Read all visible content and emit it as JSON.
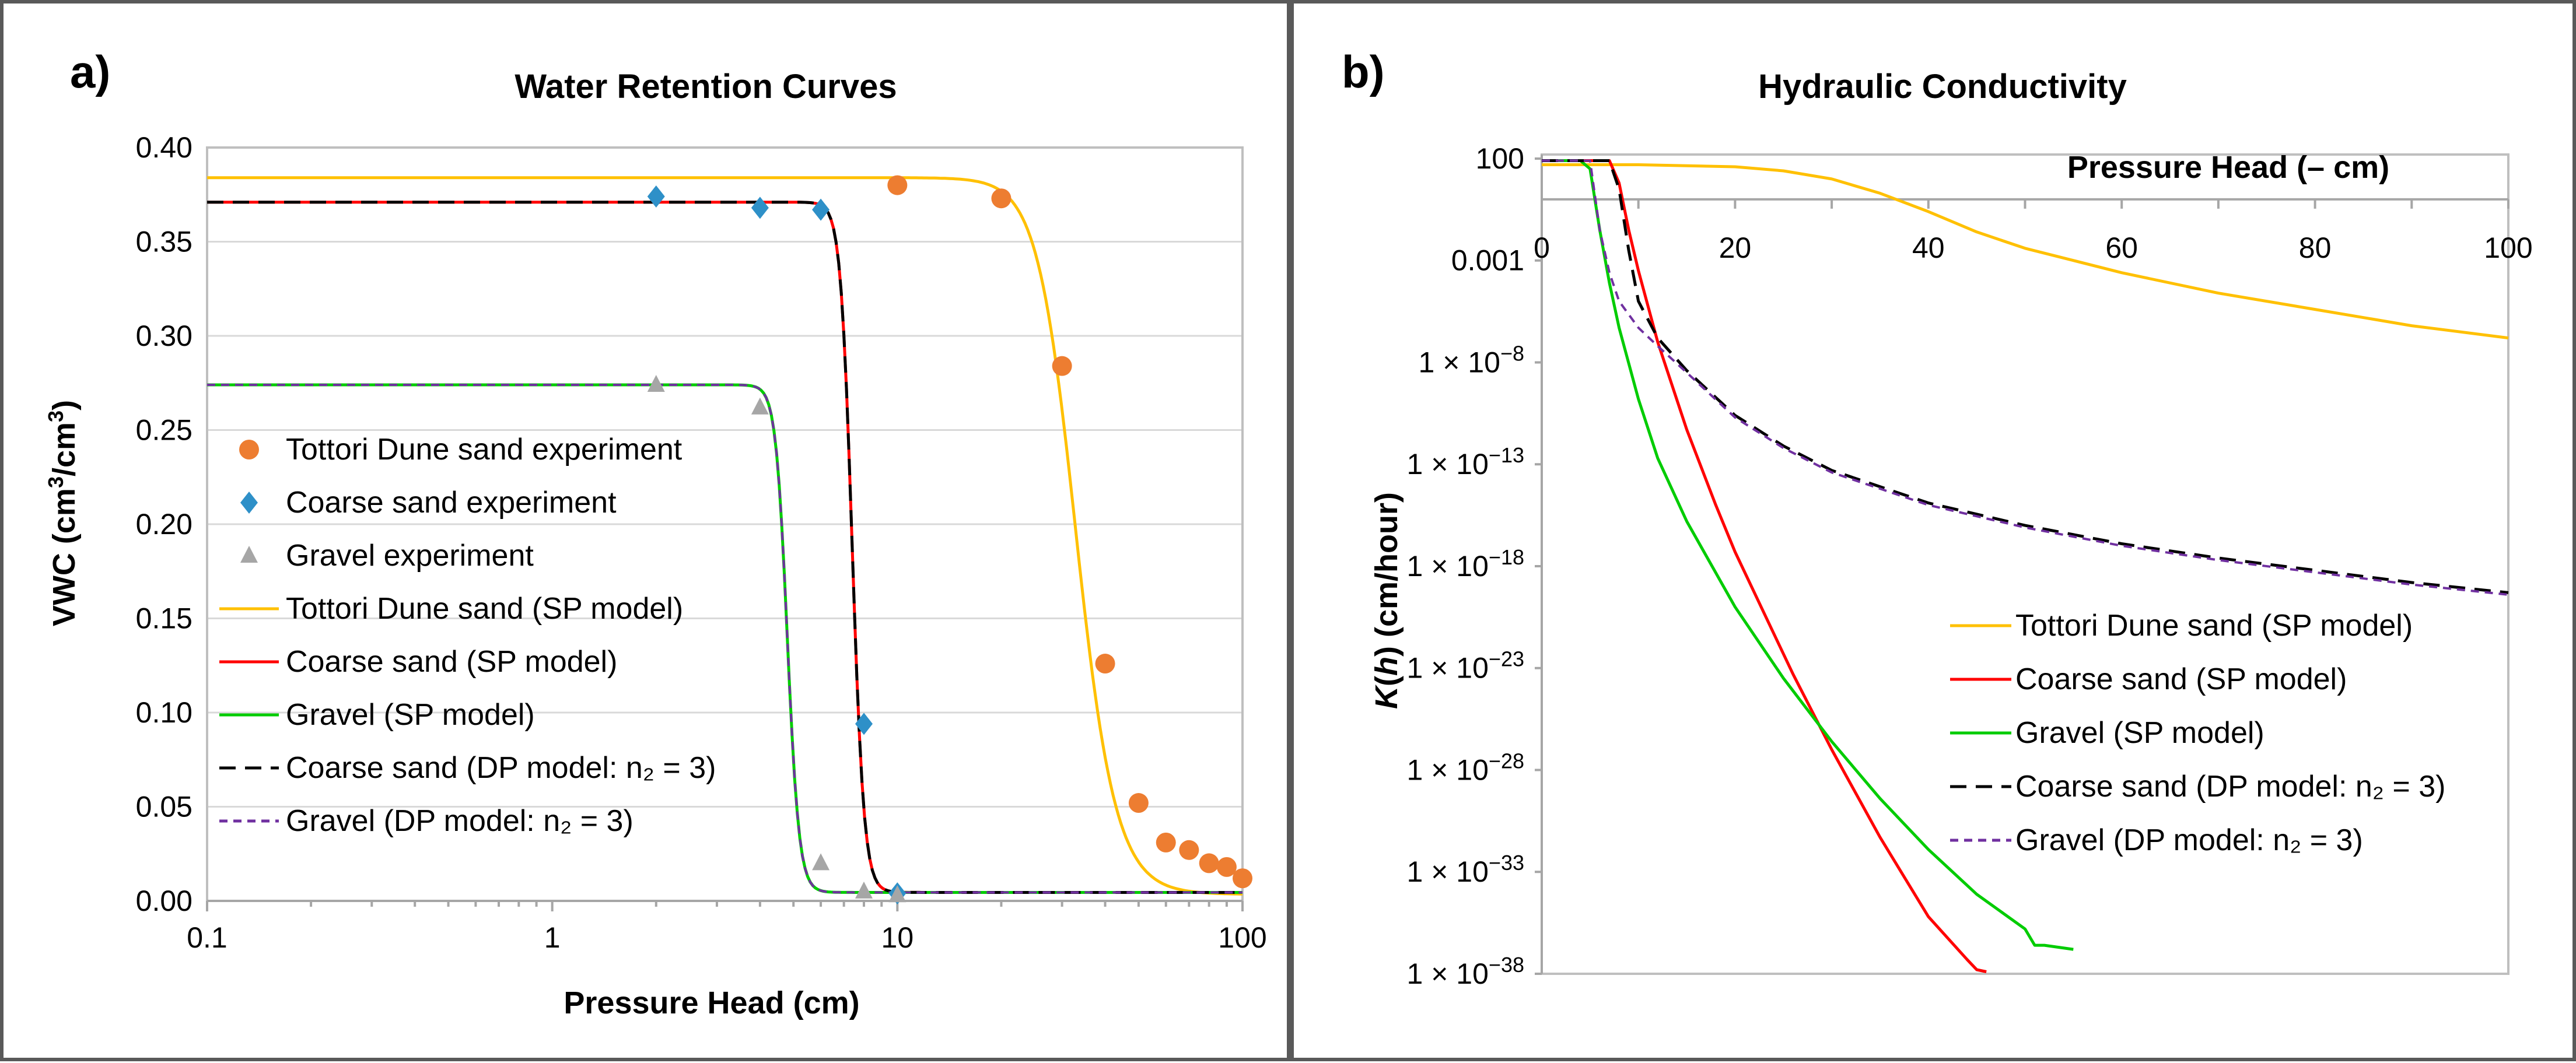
{
  "colors": {
    "tottori": "#ffc000",
    "tottori_marker": "#ed7d31",
    "coarse": "#ff0000",
    "coarse_marker": "#2e90c8",
    "gravel": "#00cc00",
    "gravel_marker": "#a6a6a6",
    "dp_coarse": "#000000",
    "dp_gravel": "#7030a0"
  },
  "chart_data": [
    {
      "type": "scatter",
      "panel_letter": "a)",
      "title": "Water Retention Curves",
      "xlabel": "Pressure Head (cm)",
      "ylabel": "VWC (cm³/cm³)",
      "xscale": "log",
      "xlim": [
        0.1,
        100
      ],
      "ylim": [
        0,
        0.4
      ],
      "x_ticks": [
        "0.1",
        "1",
        "10",
        "100"
      ],
      "y_ticks": [
        "0.00",
        "0.05",
        "0.10",
        "0.15",
        "0.20",
        "0.25",
        "0.30",
        "0.35",
        "0.40"
      ],
      "grid": true,
      "legend_position": "left",
      "legend": [
        "Tottori Dune sand experiment",
        "Coarse sand experiment",
        "Gravel experiment",
        "Tottori Dune sand (SP model)",
        "Coarse sand (SP model)",
        "Gravel (SP model)",
        "Coarse sand (DP model: n₂ = 3)",
        "Gravel (DP model: n₂ = 3)"
      ],
      "experiments": [
        {
          "name": "Tottori Dune sand experiment",
          "marker": "circle",
          "x": [
            10,
            20,
            30,
            40,
            50,
            60,
            70,
            80,
            90,
            100
          ],
          "y": [
            0.38,
            0.373,
            0.284,
            0.126,
            0.052,
            0.031,
            0.027,
            0.02,
            0.018,
            0.012
          ]
        },
        {
          "name": "Coarse sand experiment",
          "marker": "diamond",
          "x": [
            2,
            4,
            6,
            8,
            10
          ],
          "y": [
            0.374,
            0.368,
            0.367,
            0.094,
            0.004
          ]
        },
        {
          "name": "Gravel experiment",
          "marker": "triangle",
          "x": [
            2,
            4,
            6,
            8,
            10
          ],
          "y": [
            0.274,
            0.262,
            0.02,
            0.005,
            0.003
          ]
        }
      ],
      "models": [
        {
          "name": "Tottori Dune sand (SP model)",
          "qs": 0.384,
          "qr": 0.0035,
          "hm": 33,
          "n": 8
        },
        {
          "name": "Coarse sand (SP model)",
          "qs": 0.371,
          "qr": 0.0045,
          "hm": 7.4,
          "n": 26
        },
        {
          "name": "Gravel (SP model)",
          "qs": 0.274,
          "qr": 0.0045,
          "hm": 4.8,
          "n": 26
        },
        {
          "name": "Coarse sand (DP model: n₂ = 3)",
          "qs": 0.371,
          "qr": 0.0045,
          "hm": 7.4,
          "n": 26
        },
        {
          "name": "Gravel (DP model: n₂ = 3)",
          "qs": 0.274,
          "qr": 0.0045,
          "hm": 4.8,
          "n": 26
        }
      ]
    },
    {
      "type": "line",
      "panel_letter": "b)",
      "title": "Hydraulic  Conductivity",
      "xlabel": "Pressure Head (– cm)",
      "ylabel": "K(h) (cm/hour)",
      "yscale": "log",
      "xlim": [
        0,
        100
      ],
      "ylim_log10": [
        -38,
        2.2
      ],
      "x_ticks": [
        "0",
        "20",
        "40",
        "60",
        "80",
        "100"
      ],
      "y_ticks": [
        {
          "log10": 2,
          "label": "100"
        },
        {
          "log10": -3,
          "label": "0.001"
        },
        {
          "log10": -8,
          "label": "1 × 10",
          "exp": "−8"
        },
        {
          "log10": -13,
          "label": "1 × 10",
          "exp": "−13"
        },
        {
          "log10": -18,
          "label": "1 × 10",
          "exp": "−18"
        },
        {
          "log10": -23,
          "label": "1 × 10",
          "exp": "−23"
        },
        {
          "log10": -28,
          "label": "1 × 10",
          "exp": "−28"
        },
        {
          "log10": -33,
          "label": "1 × 10",
          "exp": "−33"
        },
        {
          "log10": -38,
          "label": "1 × 10",
          "exp": "−38"
        }
      ],
      "grid": false,
      "legend_position": "right",
      "legend": [
        "Tottori Dune sand (SP model)",
        "Coarse sand (SP model)",
        "Gravel (SP model)",
        "Coarse sand (DP model: n₂ = 3)",
        "Gravel (DP model: n₂ = 3)"
      ],
      "series": [
        {
          "name": "Tottori Dune sand (SP model)",
          "x": [
            0,
            10,
            20,
            25,
            30,
            35,
            40,
            45,
            50,
            55,
            60,
            70,
            80,
            90,
            100
          ],
          "log10_y": [
            1.7,
            1.7,
            1.6,
            1.4,
            1.0,
            0.3,
            -0.6,
            -1.6,
            -2.4,
            -3.0,
            -3.6,
            -4.6,
            -5.4,
            -6.2,
            -6.8
          ]
        },
        {
          "name": "Coarse sand (SP model)",
          "x": [
            0,
            3,
            5,
            6,
            7,
            8,
            9,
            10,
            12,
            15,
            18,
            20,
            23,
            26,
            30,
            35,
            40,
            44,
            45,
            46
          ],
          "log10_y": [
            2.6,
            2.6,
            2.6,
            2.5,
            2.3,
            0.8,
            -1.5,
            -3.5,
            -7.0,
            -11.3,
            -15.0,
            -17.3,
            -20.3,
            -23.3,
            -27.0,
            -31.3,
            -35.2,
            -37.3,
            -37.8,
            -37.9
          ]
        },
        {
          "name": "Gravel (SP model)",
          "x": [
            0,
            2,
            3,
            4,
            5,
            6,
            7,
            8,
            10,
            12,
            15,
            20,
            25,
            30,
            35,
            40,
            45,
            50,
            51,
            52,
            55
          ],
          "log10_y": [
            3.7,
            3.7,
            3.7,
            3.5,
            1.5,
            -1.5,
            -4.1,
            -6.3,
            -9.8,
            -12.7,
            -15.8,
            -20.0,
            -23.5,
            -26.6,
            -29.4,
            -31.9,
            -34.1,
            -35.8,
            -36.6,
            -36.6,
            -36.8
          ]
        },
        {
          "name": "Coarse sand (DP model: n₂ = 3)",
          "x": [
            0,
            5,
            6,
            7,
            8,
            9,
            10,
            12,
            15,
            20,
            25,
            30,
            40,
            50,
            60,
            70,
            80,
            90,
            100
          ],
          "log10_y": [
            2.6,
            2.6,
            2.5,
            2.3,
            0.5,
            -2.5,
            -5.0,
            -6.8,
            -8.4,
            -10.6,
            -12.1,
            -13.3,
            -14.9,
            -16.0,
            -16.9,
            -17.6,
            -18.2,
            -18.8,
            -19.3
          ]
        },
        {
          "name": "Gravel (DP model: n₂ = 3)",
          "x": [
            0,
            4,
            5,
            6,
            7,
            8,
            10,
            12,
            15,
            20,
            25,
            30,
            40,
            50,
            60,
            70,
            80,
            90,
            100
          ],
          "log10_y": [
            3.7,
            3.6,
            2.0,
            -1.5,
            -3.6,
            -5.0,
            -6.3,
            -7.2,
            -8.5,
            -10.7,
            -12.2,
            -13.4,
            -15.0,
            -16.1,
            -17.0,
            -17.7,
            -18.3,
            -18.9,
            -19.4
          ]
        }
      ]
    }
  ]
}
